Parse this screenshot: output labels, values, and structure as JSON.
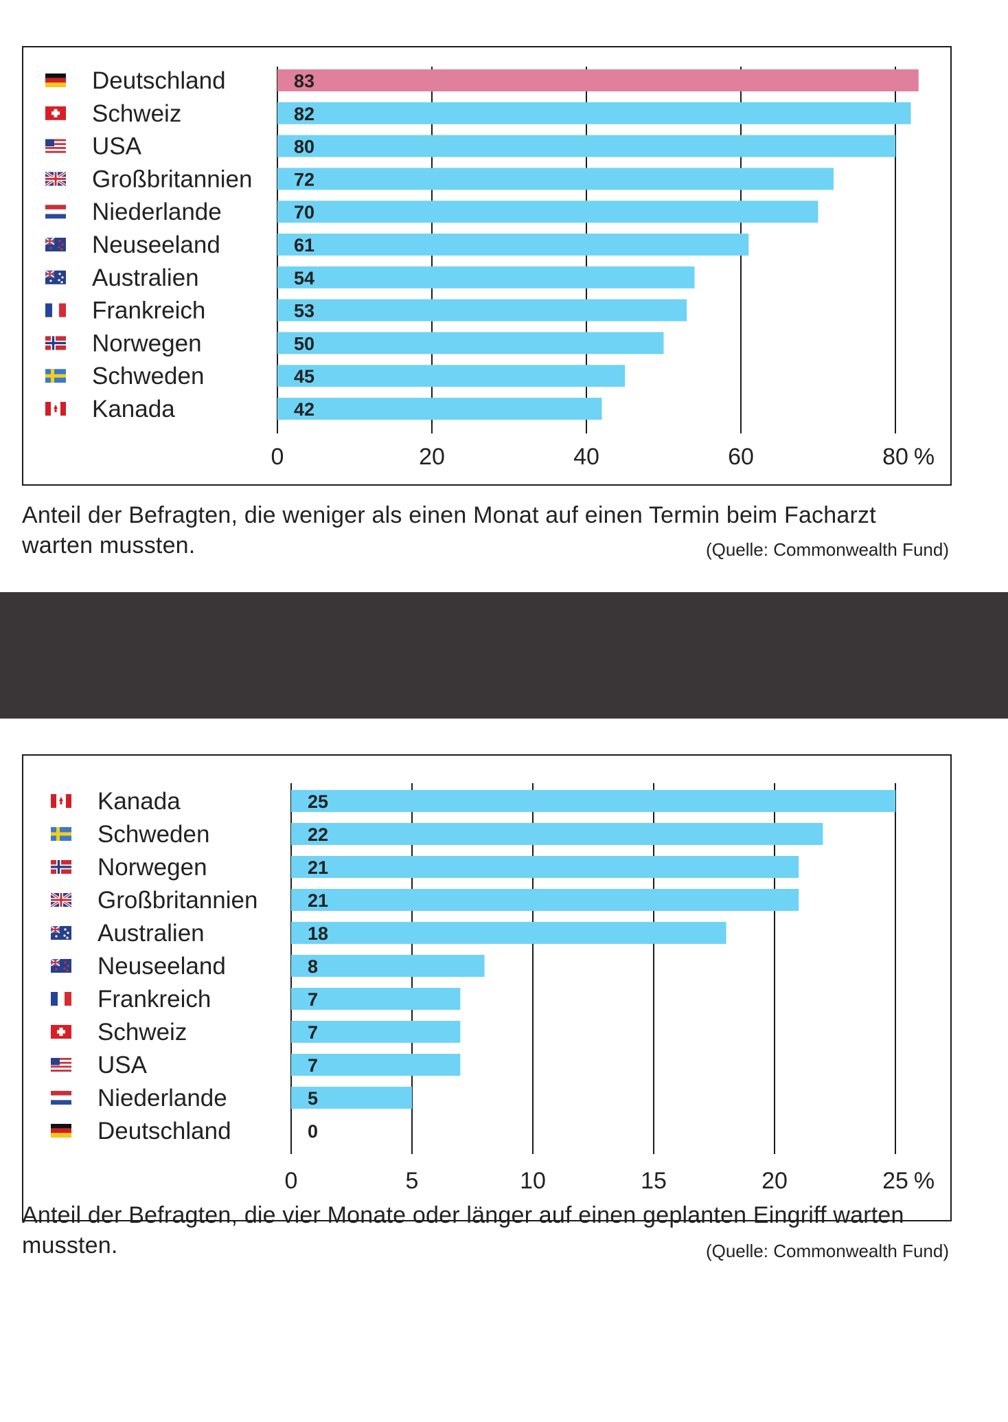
{
  "colors": {
    "bar": "#6fd3f5",
    "highlight": "#e0809c",
    "grid": "#1c1c1c"
  },
  "charts": [
    {
      "caption": "Anteil der Befragten, die weniger als einen Monat auf einen Termin beim Facharzt warten mussten.",
      "source": "(Quelle: Commonwealth Fund)"
    },
    {
      "caption": "Anteil der Befragten, die vier Monate oder länger auf einen geplanten Eingriff warten mussten.",
      "source": "(Quelle: Commonwealth Fund)"
    }
  ],
  "chart_data": [
    {
      "type": "bar",
      "orientation": "horizontal",
      "categories": [
        "Deutschland",
        "Schweiz",
        "USA",
        "Großbritannien",
        "Niederlande",
        "Neuseeland",
        "Australien",
        "Frankreich",
        "Norwegen",
        "Schweden",
        "Kanada"
      ],
      "flags": [
        "flag-germany-icon",
        "flag-switzerland-icon",
        "flag-usa-icon",
        "flag-uk-icon",
        "flag-netherlands-icon",
        "flag-new-zealand-icon",
        "flag-australia-icon",
        "flag-france-icon",
        "flag-norway-icon",
        "flag-sweden-icon",
        "flag-canada-icon"
      ],
      "values": [
        83,
        82,
        80,
        72,
        70,
        61,
        54,
        53,
        50,
        45,
        42
      ],
      "highlight": "Deutschland",
      "xticks": [
        "0",
        "20",
        "40",
        "60",
        "80"
      ],
      "xunit": "%",
      "xlim": [
        0,
        80
      ],
      "grid": true
    },
    {
      "type": "bar",
      "orientation": "horizontal",
      "categories": [
        "Kanada",
        "Schweden",
        "Norwegen",
        "Großbritannien",
        "Australien",
        "Neuseeland",
        "Frankreich",
        "Schweiz",
        "USA",
        "Niederlande",
        "Deutschland"
      ],
      "flags": [
        "flag-canada-icon",
        "flag-sweden-icon",
        "flag-norway-icon",
        "flag-uk-icon",
        "flag-australia-icon",
        "flag-new-zealand-icon",
        "flag-france-icon",
        "flag-switzerland-icon",
        "flag-usa-icon",
        "flag-netherlands-icon",
        "flag-germany-icon"
      ],
      "values": [
        25,
        22,
        21,
        21,
        18,
        8,
        7,
        7,
        7,
        5,
        0
      ],
      "highlight": null,
      "xticks": [
        "0",
        "5",
        "10",
        "15",
        "20",
        "25"
      ],
      "xunit": "%",
      "xlim": [
        0,
        25
      ],
      "grid": true
    }
  ]
}
